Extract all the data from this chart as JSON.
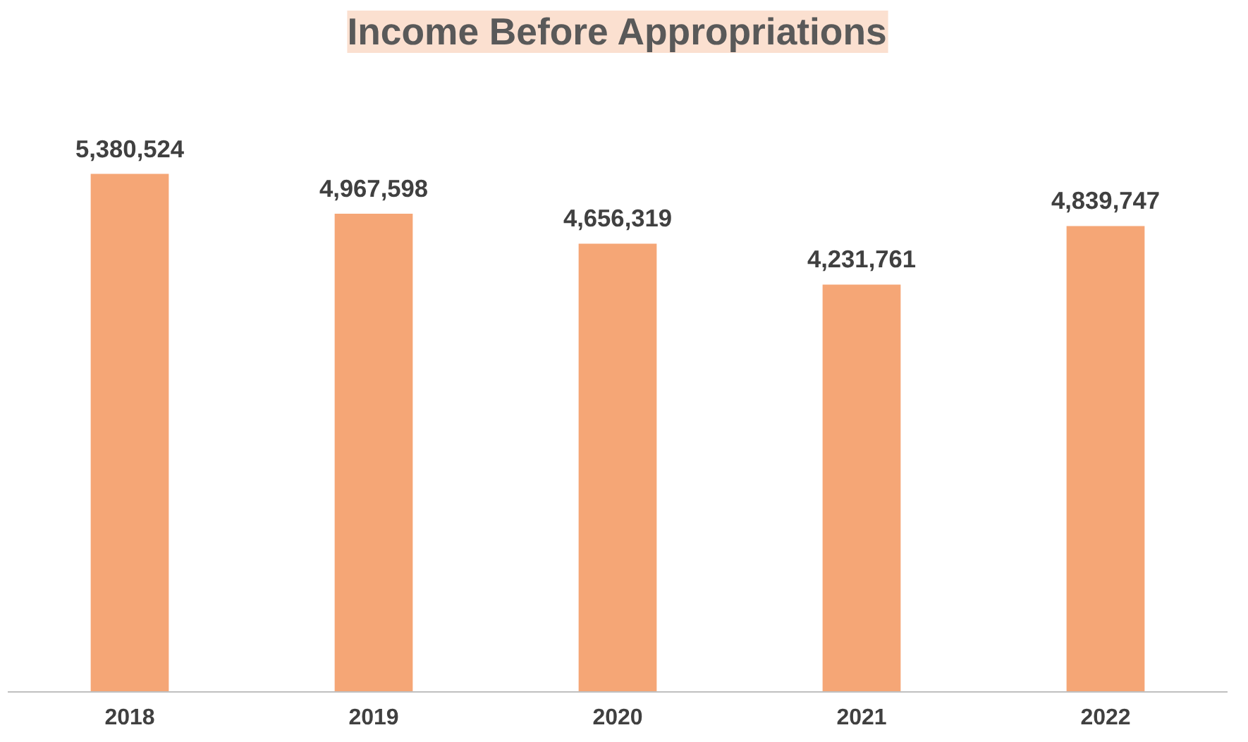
{
  "chart_data": {
    "type": "bar",
    "title": "Income Before Appropriations",
    "categories": [
      "2018",
      "2019",
      "2020",
      "2021",
      "2022"
    ],
    "values": [
      5380524,
      4967598,
      4656319,
      4231761,
      4839747
    ],
    "color": "#f5a676",
    "value_labels": [
      "5,380,524",
      "4,967,598",
      "4,656,319",
      "4,231,761",
      "4,839,747"
    ],
    "grid": false
  }
}
